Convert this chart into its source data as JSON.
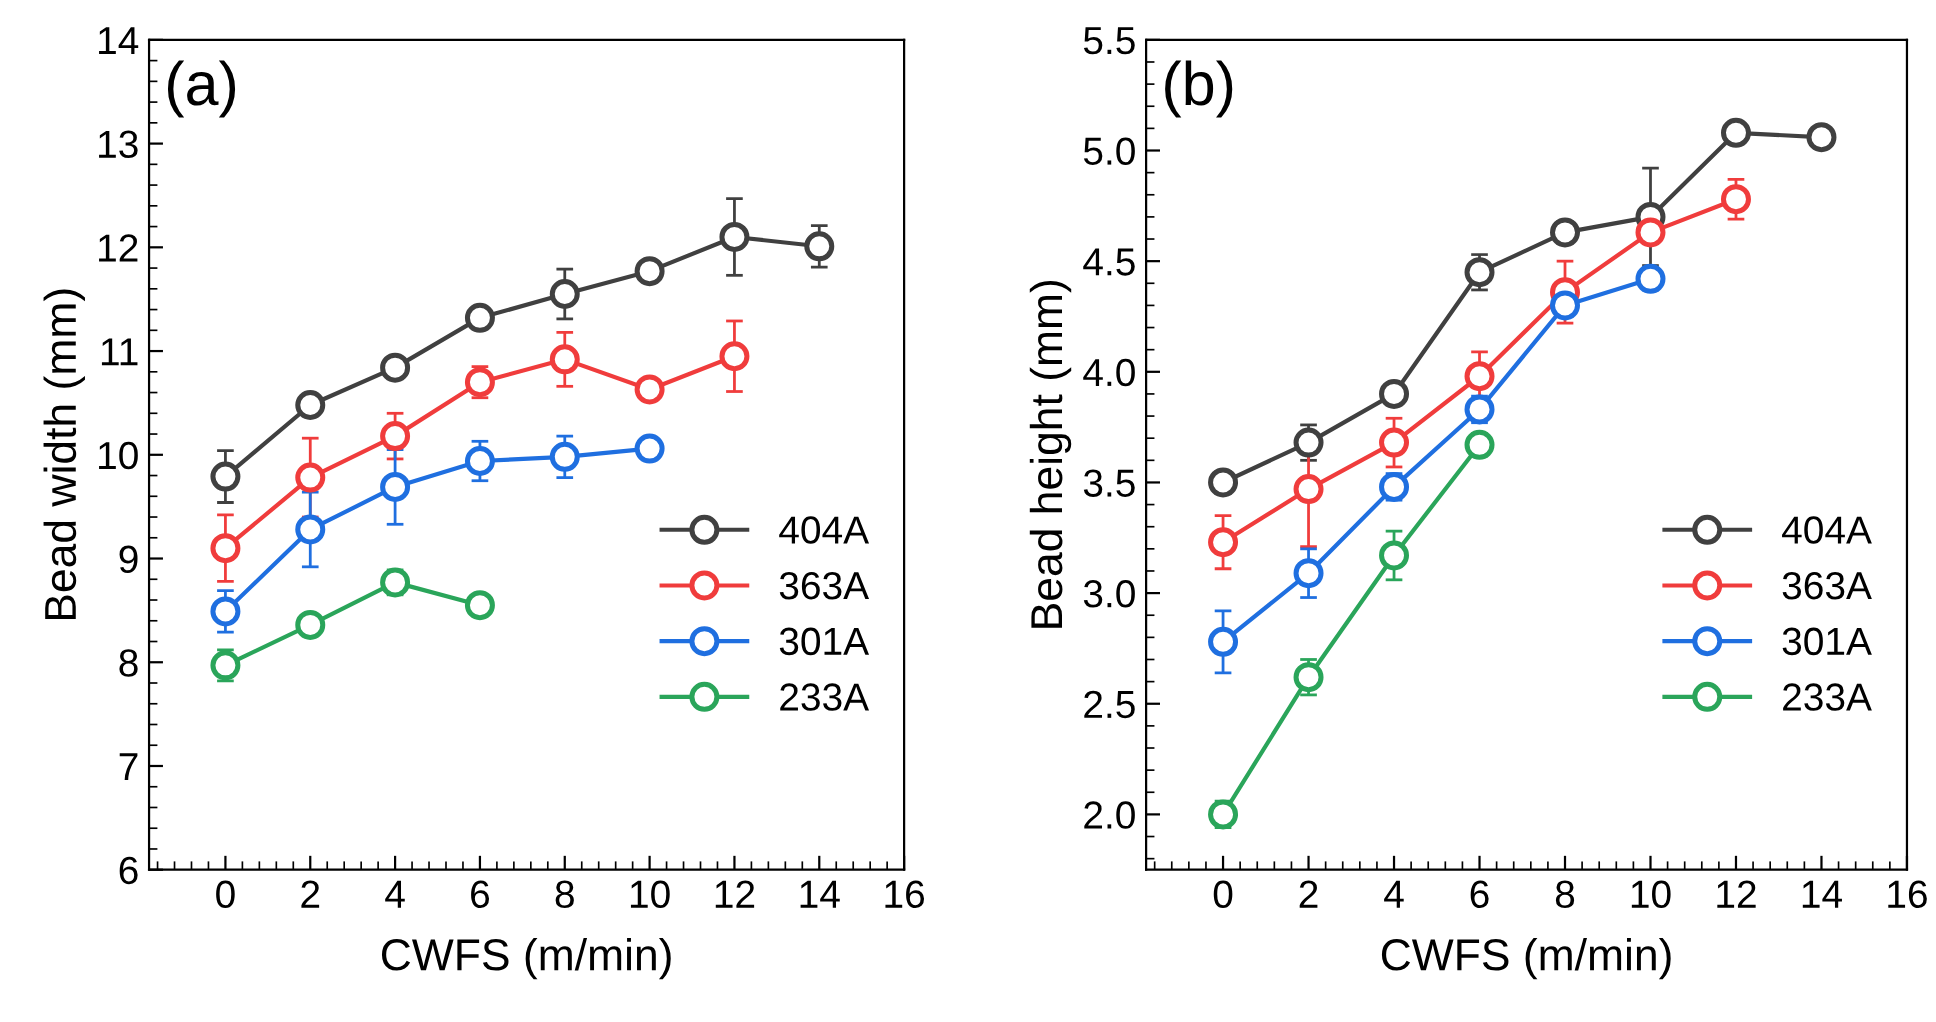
{
  "chart_data": [
    {
      "type": "line",
      "annotations": [
        "(a)"
      ],
      "xlabel": "CWFS (m/min)",
      "ylabel": "Bead width (mm)",
      "xlim": [
        -1.8,
        16
      ],
      "xticks": [
        0,
        2,
        4,
        6,
        8,
        10,
        12,
        14,
        16
      ],
      "ylim": [
        6,
        14
      ],
      "yticks": [
        6,
        7,
        8,
        9,
        10,
        11,
        12,
        13,
        14
      ],
      "marker": "circle",
      "legend": "bottom right",
      "grid": false,
      "series": [
        {
          "name": "404A",
          "color": "#404040",
          "x": [
            0,
            2,
            4,
            6,
            8,
            10,
            12,
            14
          ],
          "values": [
            9.79,
            10.48,
            10.84,
            11.32,
            11.55,
            11.77,
            12.1,
            12.01
          ],
          "errors": [
            0.25,
            0.05,
            0.1,
            0.05,
            0.24,
            0.05,
            0.37,
            0.2
          ]
        },
        {
          "name": "363A",
          "color": "#f03c3c",
          "x": [
            0,
            2,
            4,
            6,
            8,
            10,
            12
          ],
          "values": [
            9.1,
            9.78,
            10.18,
            10.7,
            10.92,
            10.63,
            10.95
          ],
          "errors": [
            0.32,
            0.38,
            0.22,
            0.15,
            0.26,
            0.05,
            0.34
          ]
        },
        {
          "name": "301A",
          "color": "#1f6fe0",
          "x": [
            0,
            2,
            4,
            6,
            8,
            10
          ],
          "values": [
            8.49,
            9.28,
            9.69,
            9.94,
            9.98,
            10.06
          ],
          "errors": [
            0.2,
            0.36,
            0.36,
            0.19,
            0.2,
            0.05
          ]
        },
        {
          "name": "233A",
          "color": "#2aa55a",
          "x": [
            0,
            2,
            4,
            6
          ],
          "values": [
            7.97,
            8.36,
            8.77,
            8.55
          ],
          "errors": [
            0.15,
            0.05,
            0.12,
            0.1
          ]
        }
      ]
    },
    {
      "type": "line",
      "annotations": [
        "(b)"
      ],
      "xlabel": "CWFS (m/min)",
      "ylabel": "Bead height (mm)",
      "xlim": [
        -1.8,
        16
      ],
      "xticks": [
        0,
        2,
        4,
        6,
        8,
        10,
        12,
        14,
        16
      ],
      "ylim": [
        1.75,
        5.5
      ],
      "yticks": [
        {
          "value": 2,
          "label": "2.0"
        },
        2.5,
        {
          "value": 3,
          "label": "3.0"
        },
        3.5,
        {
          "value": 4,
          "label": "4.0"
        },
        4.5,
        {
          "value": 5,
          "label": "5.0"
        },
        5.5
      ],
      "marker": "circle",
      "legend": "bottom right",
      "grid": false,
      "series": [
        {
          "name": "404A",
          "color": "#404040",
          "x": [
            0,
            2,
            4,
            6,
            8,
            10,
            12,
            14
          ],
          "values": [
            3.5,
            3.68,
            3.9,
            4.45,
            4.63,
            4.7,
            5.08,
            5.06
          ],
          "errors": [
            0.05,
            0.08,
            0.03,
            0.08,
            0.05,
            0.22,
            0.03,
            null
          ]
        },
        {
          "name": "363A",
          "color": "#f03c3c",
          "x": [
            0,
            2,
            4,
            6,
            8,
            10,
            12
          ],
          "values": [
            3.23,
            3.47,
            3.68,
            3.98,
            4.36,
            4.63,
            4.78
          ],
          "errors": [
            0.12,
            0.26,
            0.11,
            0.11,
            0.14,
            0.05,
            0.09
          ]
        },
        {
          "name": "301A",
          "color": "#1f6fe0",
          "x": [
            0,
            2,
            4,
            6,
            8,
            10
          ],
          "values": [
            2.78,
            3.09,
            3.48,
            3.83,
            4.3,
            4.42
          ],
          "errors": [
            0.14,
            0.11,
            0.06,
            0.06,
            0.05,
            0.05
          ]
        },
        {
          "name": "233A",
          "color": "#2aa55a",
          "x": [
            0,
            2,
            4,
            6
          ],
          "values": [
            2.0,
            2.62,
            3.17,
            3.67
          ],
          "errors": [
            0.06,
            0.08,
            0.11,
            0.05
          ]
        }
      ]
    }
  ]
}
